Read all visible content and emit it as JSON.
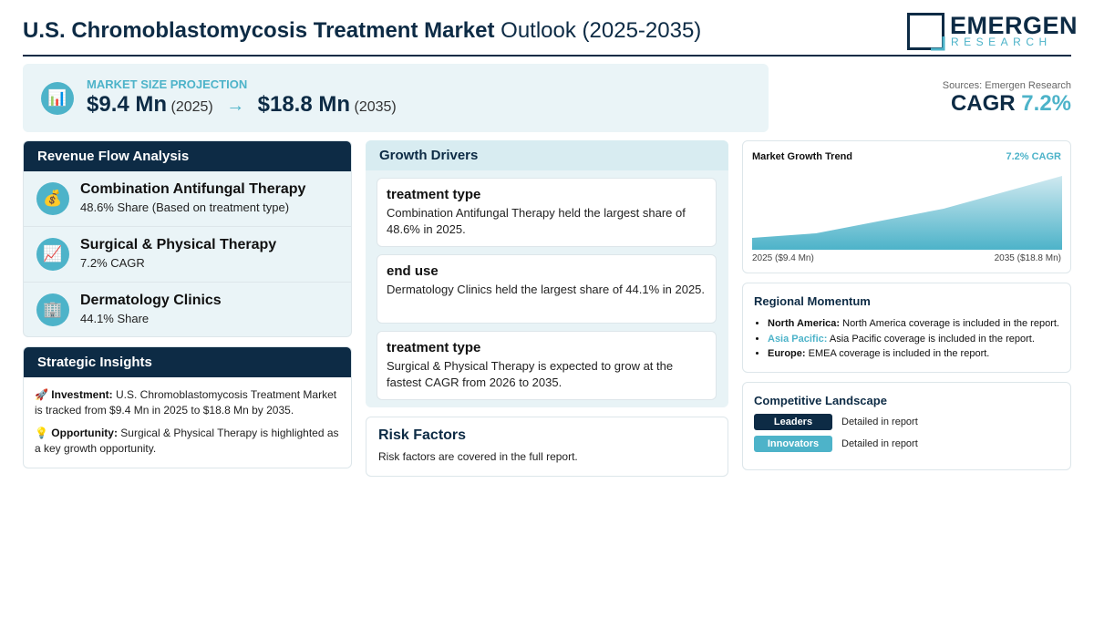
{
  "header": {
    "title_bold": "U.S. Chromoblastomycosis Treatment Market",
    "title_rest": "Outlook (2025-2035)",
    "logo_main": "EMERGEN",
    "logo_sub": "RESEARCH"
  },
  "projection": {
    "icon": "📊",
    "label": "MARKET SIZE PROJECTION",
    "start_value": "$9.4 Mn",
    "start_year": "(2025)",
    "arrow": "→",
    "end_value": "$18.8 Mn",
    "end_year": "(2035)"
  },
  "sources": "Sources: Emergen Research",
  "cagr": {
    "label": "CAGR",
    "value": "7.2%"
  },
  "revenue_flow": {
    "title": "Revenue Flow Analysis",
    "items": [
      {
        "icon": "💰",
        "name": "Combination Antifungal Therapy",
        "detail": "48.6% Share (Based on treatment type)"
      },
      {
        "icon": "📈",
        "name": "Surgical & Physical Therapy",
        "detail": "7.2% CAGR"
      },
      {
        "icon": "🏢",
        "name": "Dermatology Clinics",
        "detail": "44.1% Share"
      }
    ]
  },
  "strategic_insights": {
    "title": "Strategic Insights",
    "items": [
      {
        "icon": "🚀",
        "label": "Investment:",
        "text": "U.S. Chromoblastomycosis Treatment Market is tracked from $9.4 Mn in 2025 to $18.8 Mn by 2035."
      },
      {
        "icon": "💡",
        "label": "Opportunity:",
        "text": "Surgical & Physical Therapy is highlighted as a key growth opportunity."
      }
    ]
  },
  "growth_drivers": {
    "title": "Growth Drivers",
    "items": [
      {
        "heading": "treatment type",
        "text": "Combination Antifungal Therapy held the largest share of 48.6% in 2025."
      },
      {
        "heading": "end use",
        "text": "Dermatology Clinics held the largest share of 44.1% in 2025."
      },
      {
        "heading": "treatment type",
        "text": "Surgical & Physical Therapy is expected to grow at the fastest CAGR from 2026 to 2035."
      }
    ]
  },
  "risk_factors": {
    "title": "Risk Factors",
    "text": "Risk factors are covered in the full report."
  },
  "trend": {
    "title": "Market Growth Trend",
    "cagr_label": "7.2% CAGR",
    "start_label": "2025 ($9.4 Mn)",
    "end_label": "2035 ($18.8 Mn)"
  },
  "regional": {
    "title": "Regional Momentum",
    "items": [
      {
        "region": "North America:",
        "text": "North America coverage is included in the report."
      },
      {
        "region": "Asia Pacific:",
        "text": "Asia Pacific coverage is included in the report."
      },
      {
        "region": "Europe:",
        "text": "EMEA coverage is included in the report."
      }
    ]
  },
  "competitive": {
    "title": "Competitive Landscape",
    "items": [
      {
        "tag": "Leaders",
        "text": "Detailed in report"
      },
      {
        "tag": "Innovators",
        "text": "Detailed in report"
      }
    ]
  }
}
